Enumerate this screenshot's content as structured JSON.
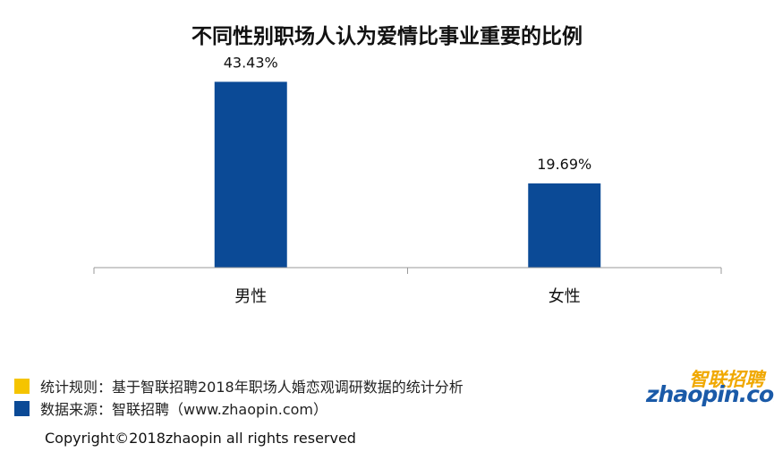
{
  "chart_data": {
    "type": "bar",
    "title": "不同性别职场人认为爱情比事业重要的比例",
    "categories": [
      "男性",
      "女性"
    ],
    "values": [
      43.43,
      19.69
    ],
    "value_labels": [
      "43.43%",
      "19.69%"
    ],
    "ylim": [
      0,
      50
    ],
    "xlabel": "",
    "ylabel": "",
    "grid": false,
    "bar_color": "#0b4a96"
  },
  "legend": [
    {
      "text": "统计规则：基于智联招聘2018年职场人婚恋观调研数据的统计分析",
      "color": "#f5c400"
    },
    {
      "text": "数据来源：智联招聘（www.zhaopin.com）",
      "color": "#0b4a96"
    }
  ],
  "logo": {
    "cn": "智联招聘",
    "en": "zhaopin.com",
    "colors": {
      "yellow": "#f0a800",
      "blue": "#1a5aa8"
    }
  },
  "copyright": "Copyright©2018zhaopin all rights reserved"
}
